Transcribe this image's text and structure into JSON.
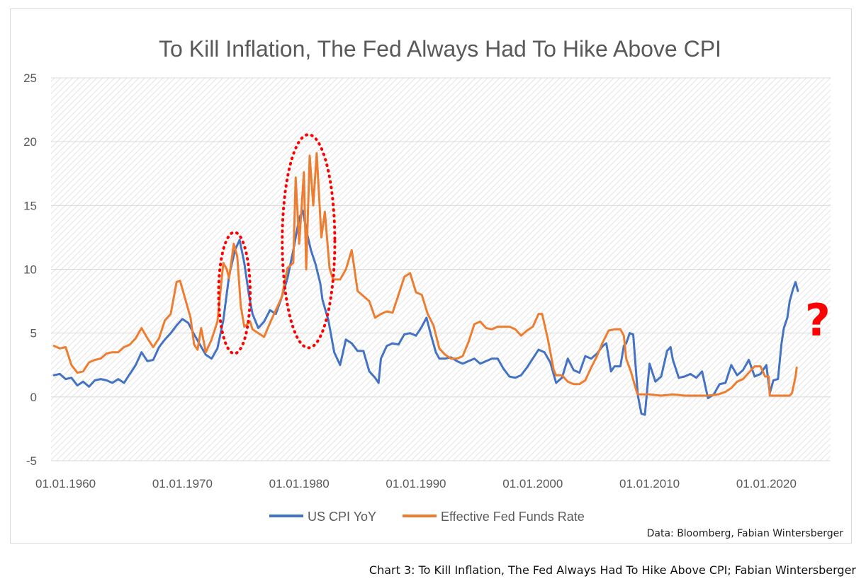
{
  "caption": "Chart 3: To Kill Inflation, The Fed Always Had To Hike Above CPI; Fabian Wintersberger",
  "source_note": "Data: Bloomberg, Fabian Wintersberger",
  "annotation_symbol": "?",
  "colors": {
    "cpi": "#4472c4",
    "fed": "#ed7d31",
    "highlight": "#ff0000",
    "grid": "#d9d9d9",
    "text": "#595959"
  },
  "chart_data": {
    "type": "line",
    "title": "To Kill Inflation, The Fed Always Had To Hike Above CPI",
    "xlabel": "",
    "ylabel": "",
    "ylim": [
      -5,
      25
    ],
    "yticks": [
      -5,
      0,
      5,
      10,
      15,
      20,
      25
    ],
    "xlim": [
      1958.75,
      2025.5
    ],
    "xticks": [
      {
        "value": 1960,
        "label": "01.01.1960"
      },
      {
        "value": 1970,
        "label": "01.01.1970"
      },
      {
        "value": 1980,
        "label": "01.01.1980"
      },
      {
        "value": 1990,
        "label": "01.01.1990"
      },
      {
        "value": 2000,
        "label": "01.01.2000"
      },
      {
        "value": 2010,
        "label": "01.01.2010"
      },
      {
        "value": 2020,
        "label": "01.01.2020"
      }
    ],
    "grid": true,
    "legend_position": "bottom-center",
    "series": [
      {
        "name": "US CPI YoY",
        "color": "#4472c4",
        "points": [
          [
            1959.0,
            1.7
          ],
          [
            1959.5,
            1.8
          ],
          [
            1960.0,
            1.4
          ],
          [
            1960.5,
            1.5
          ],
          [
            1961.0,
            0.9
          ],
          [
            1961.5,
            1.2
          ],
          [
            1962.0,
            0.8
          ],
          [
            1962.5,
            1.3
          ],
          [
            1963.0,
            1.4
          ],
          [
            1963.5,
            1.3
          ],
          [
            1964.0,
            1.1
          ],
          [
            1964.5,
            1.4
          ],
          [
            1965.0,
            1.1
          ],
          [
            1965.5,
            1.8
          ],
          [
            1966.0,
            2.5
          ],
          [
            1966.5,
            3.5
          ],
          [
            1967.0,
            2.8
          ],
          [
            1967.5,
            2.9
          ],
          [
            1968.0,
            3.9
          ],
          [
            1968.5,
            4.5
          ],
          [
            1969.0,
            5.0
          ],
          [
            1969.5,
            5.6
          ],
          [
            1970.0,
            6.1
          ],
          [
            1970.5,
            5.8
          ],
          [
            1971.0,
            4.9
          ],
          [
            1971.5,
            4.1
          ],
          [
            1972.0,
            3.3
          ],
          [
            1972.5,
            3.0
          ],
          [
            1973.0,
            3.8
          ],
          [
            1973.5,
            6.0
          ],
          [
            1974.0,
            9.5
          ],
          [
            1974.5,
            11.5
          ],
          [
            1974.9,
            12.3
          ],
          [
            1975.3,
            10.5
          ],
          [
            1975.7,
            8.0
          ],
          [
            1976.0,
            6.5
          ],
          [
            1976.5,
            5.4
          ],
          [
            1977.0,
            5.9
          ],
          [
            1977.5,
            6.8
          ],
          [
            1978.0,
            6.5
          ],
          [
            1978.5,
            7.8
          ],
          [
            1979.0,
            9.3
          ],
          [
            1979.5,
            11.5
          ],
          [
            1980.0,
            14.0
          ],
          [
            1980.3,
            14.6
          ],
          [
            1980.7,
            12.7
          ],
          [
            1981.0,
            11.5
          ],
          [
            1981.4,
            10.4
          ],
          [
            1981.8,
            8.9
          ],
          [
            1982.0,
            7.6
          ],
          [
            1982.5,
            6.0
          ],
          [
            1983.0,
            3.5
          ],
          [
            1983.5,
            2.5
          ],
          [
            1984.0,
            4.5
          ],
          [
            1984.5,
            4.2
          ],
          [
            1985.0,
            3.6
          ],
          [
            1985.5,
            3.6
          ],
          [
            1986.0,
            2.0
          ],
          [
            1986.5,
            1.5
          ],
          [
            1986.8,
            1.1
          ],
          [
            1987.0,
            3.0
          ],
          [
            1987.5,
            4.0
          ],
          [
            1988.0,
            4.2
          ],
          [
            1988.5,
            4.1
          ],
          [
            1989.0,
            4.9
          ],
          [
            1989.5,
            5.0
          ],
          [
            1990.0,
            4.8
          ],
          [
            1990.5,
            5.5
          ],
          [
            1990.9,
            6.2
          ],
          [
            1991.3,
            4.8
          ],
          [
            1991.7,
            3.5
          ],
          [
            1992.0,
            3.0
          ],
          [
            1992.5,
            3.0
          ],
          [
            1993.0,
            3.1
          ],
          [
            1993.5,
            2.8
          ],
          [
            1994.0,
            2.6
          ],
          [
            1994.5,
            2.8
          ],
          [
            1995.0,
            3.0
          ],
          [
            1995.5,
            2.6
          ],
          [
            1996.0,
            2.8
          ],
          [
            1996.5,
            3.0
          ],
          [
            1997.0,
            3.0
          ],
          [
            1997.5,
            2.2
          ],
          [
            1998.0,
            1.6
          ],
          [
            1998.5,
            1.5
          ],
          [
            1999.0,
            1.7
          ],
          [
            1999.5,
            2.3
          ],
          [
            2000.0,
            3.0
          ],
          [
            2000.5,
            3.7
          ],
          [
            2001.0,
            3.5
          ],
          [
            2001.5,
            2.7
          ],
          [
            2002.0,
            1.1
          ],
          [
            2002.5,
            1.5
          ],
          [
            2003.0,
            3.0
          ],
          [
            2003.5,
            2.1
          ],
          [
            2004.0,
            1.9
          ],
          [
            2004.5,
            3.2
          ],
          [
            2005.0,
            3.0
          ],
          [
            2005.5,
            3.4
          ],
          [
            2006.0,
            4.0
          ],
          [
            2006.3,
            4.2
          ],
          [
            2006.7,
            2.0
          ],
          [
            2007.0,
            2.4
          ],
          [
            2007.5,
            2.4
          ],
          [
            2007.8,
            4.0
          ],
          [
            2008.0,
            4.2
          ],
          [
            2008.3,
            5.0
          ],
          [
            2008.6,
            4.9
          ],
          [
            2009.0,
            0.1
          ],
          [
            2009.3,
            -1.3
          ],
          [
            2009.6,
            -1.4
          ],
          [
            2010.0,
            2.6
          ],
          [
            2010.5,
            1.2
          ],
          [
            2011.0,
            1.6
          ],
          [
            2011.5,
            3.6
          ],
          [
            2011.8,
            3.9
          ],
          [
            2012.0,
            2.9
          ],
          [
            2012.5,
            1.5
          ],
          [
            2013.0,
            1.6
          ],
          [
            2013.5,
            1.8
          ],
          [
            2014.0,
            1.5
          ],
          [
            2014.5,
            2.0
          ],
          [
            2015.0,
            -0.1
          ],
          [
            2015.5,
            0.2
          ],
          [
            2016.0,
            1.0
          ],
          [
            2016.5,
            1.1
          ],
          [
            2017.0,
            2.5
          ],
          [
            2017.5,
            1.7
          ],
          [
            2018.0,
            2.1
          ],
          [
            2018.5,
            2.9
          ],
          [
            2019.0,
            1.6
          ],
          [
            2019.5,
            1.8
          ],
          [
            2020.0,
            2.5
          ],
          [
            2020.3,
            0.3
          ],
          [
            2020.6,
            1.3
          ],
          [
            2021.0,
            1.4
          ],
          [
            2021.3,
            4.2
          ],
          [
            2021.5,
            5.4
          ],
          [
            2021.8,
            6.2
          ],
          [
            2022.0,
            7.5
          ],
          [
            2022.3,
            8.5
          ],
          [
            2022.5,
            9.0
          ],
          [
            2022.7,
            8.3
          ]
        ]
      },
      {
        "name": "Effective Fed Funds Rate",
        "color": "#ed7d31",
        "points": [
          [
            1959.0,
            4.0
          ],
          [
            1959.5,
            3.8
          ],
          [
            1960.0,
            3.9
          ],
          [
            1960.5,
            2.5
          ],
          [
            1961.0,
            1.9
          ],
          [
            1961.5,
            2.0
          ],
          [
            1962.0,
            2.7
          ],
          [
            1962.5,
            2.9
          ],
          [
            1963.0,
            3.0
          ],
          [
            1963.5,
            3.4
          ],
          [
            1964.0,
            3.5
          ],
          [
            1964.5,
            3.5
          ],
          [
            1965.0,
            3.9
          ],
          [
            1965.5,
            4.1
          ],
          [
            1966.0,
            4.6
          ],
          [
            1966.5,
            5.4
          ],
          [
            1967.0,
            4.6
          ],
          [
            1967.5,
            3.9
          ],
          [
            1968.0,
            4.6
          ],
          [
            1968.5,
            6.0
          ],
          [
            1969.0,
            6.5
          ],
          [
            1969.5,
            9.0
          ],
          [
            1969.8,
            9.1
          ],
          [
            1970.3,
            7.5
          ],
          [
            1970.7,
            6.2
          ],
          [
            1971.0,
            4.1
          ],
          [
            1971.3,
            3.7
          ],
          [
            1971.6,
            5.4
          ],
          [
            1972.0,
            3.5
          ],
          [
            1972.5,
            4.5
          ],
          [
            1973.0,
            5.9
          ],
          [
            1973.5,
            10.5
          ],
          [
            1973.8,
            10.0
          ],
          [
            1974.0,
            9.3
          ],
          [
            1974.4,
            12.0
          ],
          [
            1974.7,
            11.0
          ],
          [
            1975.0,
            7.1
          ],
          [
            1975.3,
            5.5
          ],
          [
            1975.8,
            5.9
          ],
          [
            1976.0,
            5.3
          ],
          [
            1976.5,
            5.0
          ],
          [
            1977.0,
            4.7
          ],
          [
            1977.5,
            5.8
          ],
          [
            1978.0,
            6.8
          ],
          [
            1978.5,
            7.8
          ],
          [
            1979.0,
            10.1
          ],
          [
            1979.5,
            10.5
          ],
          [
            1979.7,
            17.2
          ],
          [
            1980.0,
            12.0
          ],
          [
            1980.4,
            17.6
          ],
          [
            1980.6,
            10.0
          ],
          [
            1980.9,
            18.9
          ],
          [
            1981.2,
            15.0
          ],
          [
            1981.5,
            19.1
          ],
          [
            1981.9,
            12.5
          ],
          [
            1982.2,
            14.5
          ],
          [
            1982.6,
            10.1
          ],
          [
            1982.9,
            9.2
          ],
          [
            1983.5,
            9.2
          ],
          [
            1984.0,
            10.0
          ],
          [
            1984.5,
            11.5
          ],
          [
            1985.0,
            8.3
          ],
          [
            1985.5,
            7.9
          ],
          [
            1986.0,
            7.5
          ],
          [
            1986.5,
            6.2
          ],
          [
            1987.0,
            6.5
          ],
          [
            1987.5,
            6.7
          ],
          [
            1988.0,
            6.6
          ],
          [
            1988.5,
            8.0
          ],
          [
            1989.0,
            9.4
          ],
          [
            1989.5,
            9.7
          ],
          [
            1990.0,
            8.2
          ],
          [
            1990.5,
            8.0
          ],
          [
            1991.0,
            6.5
          ],
          [
            1991.5,
            5.6
          ],
          [
            1992.0,
            3.8
          ],
          [
            1992.5,
            3.3
          ],
          [
            1993.0,
            3.0
          ],
          [
            1993.5,
            3.0
          ],
          [
            1994.0,
            3.2
          ],
          [
            1994.5,
            4.3
          ],
          [
            1995.0,
            5.7
          ],
          [
            1995.5,
            5.9
          ],
          [
            1996.0,
            5.4
          ],
          [
            1996.5,
            5.3
          ],
          [
            1997.0,
            5.5
          ],
          [
            1997.5,
            5.5
          ],
          [
            1998.0,
            5.5
          ],
          [
            1998.5,
            5.3
          ],
          [
            1999.0,
            4.8
          ],
          [
            1999.5,
            5.2
          ],
          [
            2000.0,
            5.5
          ],
          [
            2000.5,
            6.5
          ],
          [
            2000.8,
            6.5
          ],
          [
            2001.3,
            4.5
          ],
          [
            2001.8,
            2.1
          ],
          [
            2002.0,
            1.7
          ],
          [
            2002.5,
            1.7
          ],
          [
            2003.0,
            1.2
          ],
          [
            2003.5,
            1.0
          ],
          [
            2004.0,
            1.0
          ],
          [
            2004.5,
            1.3
          ],
          [
            2005.0,
            2.3
          ],
          [
            2005.5,
            3.2
          ],
          [
            2006.0,
            4.3
          ],
          [
            2006.5,
            5.2
          ],
          [
            2007.0,
            5.3
          ],
          [
            2007.5,
            5.3
          ],
          [
            2007.8,
            4.8
          ],
          [
            2008.0,
            3.0
          ],
          [
            2008.4,
            2.0
          ],
          [
            2008.9,
            0.4
          ],
          [
            2009.0,
            0.2
          ],
          [
            2010.0,
            0.2
          ],
          [
            2011.0,
            0.1
          ],
          [
            2012.0,
            0.2
          ],
          [
            2013.0,
            0.1
          ],
          [
            2014.0,
            0.1
          ],
          [
            2015.0,
            0.1
          ],
          [
            2015.9,
            0.2
          ],
          [
            2016.5,
            0.4
          ],
          [
            2017.0,
            0.7
          ],
          [
            2017.5,
            1.2
          ],
          [
            2018.0,
            1.4
          ],
          [
            2018.5,
            1.9
          ],
          [
            2019.0,
            2.4
          ],
          [
            2019.5,
            2.4
          ],
          [
            2019.9,
            1.6
          ],
          [
            2020.2,
            1.6
          ],
          [
            2020.3,
            0.1
          ],
          [
            2021.0,
            0.1
          ],
          [
            2021.5,
            0.1
          ],
          [
            2022.0,
            0.1
          ],
          [
            2022.2,
            0.3
          ],
          [
            2022.5,
            1.6
          ],
          [
            2022.6,
            2.3
          ]
        ]
      }
    ],
    "highlights": [
      {
        "x_center": 1974.45,
        "y_center": 8.15,
        "x_radius": 1.35,
        "y_radius": 4.75
      },
      {
        "x_center": 1980.8,
        "y_center": 12.2,
        "x_radius": 2.25,
        "y_radius": 8.35
      }
    ],
    "annotation_point": {
      "x": 2024.4,
      "y": 7.6
    }
  }
}
